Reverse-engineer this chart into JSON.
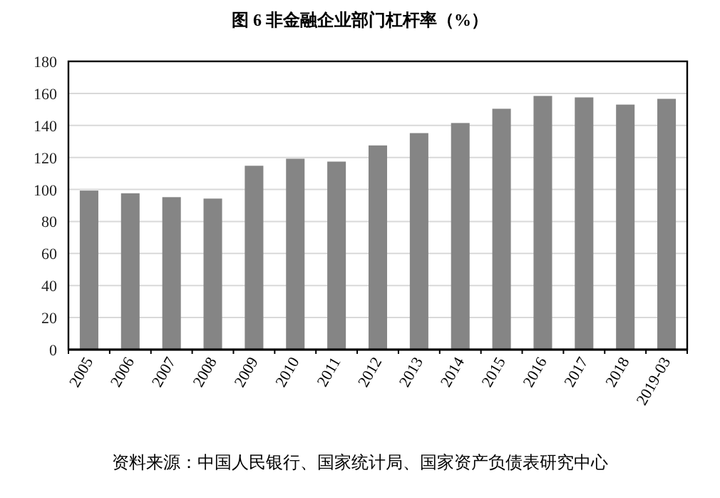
{
  "chart_data": {
    "type": "bar",
    "title": "图 6  非金融企业部门杠杆率（%）",
    "categories": [
      "2005",
      "2006",
      "2007",
      "2008",
      "2009",
      "2010",
      "2011",
      "2012",
      "2013",
      "2014",
      "2015",
      "2016",
      "2017",
      "2018",
      "2019-03"
    ],
    "values": [
      99.3,
      97.6,
      95.2,
      94.3,
      114.8,
      119.2,
      117.4,
      127.5,
      135.2,
      141.5,
      150.4,
      158.4,
      157.5,
      153.0,
      156.6
    ],
    "color": "#858585",
    "ylim": [
      0,
      180
    ],
    "yticks": [
      0,
      20,
      40,
      60,
      80,
      100,
      120,
      140,
      160,
      180
    ],
    "grid": "y",
    "annotations": [
      "资料来源：中国人民银行、国家统计局、国家资产负债表研究中心"
    ]
  }
}
